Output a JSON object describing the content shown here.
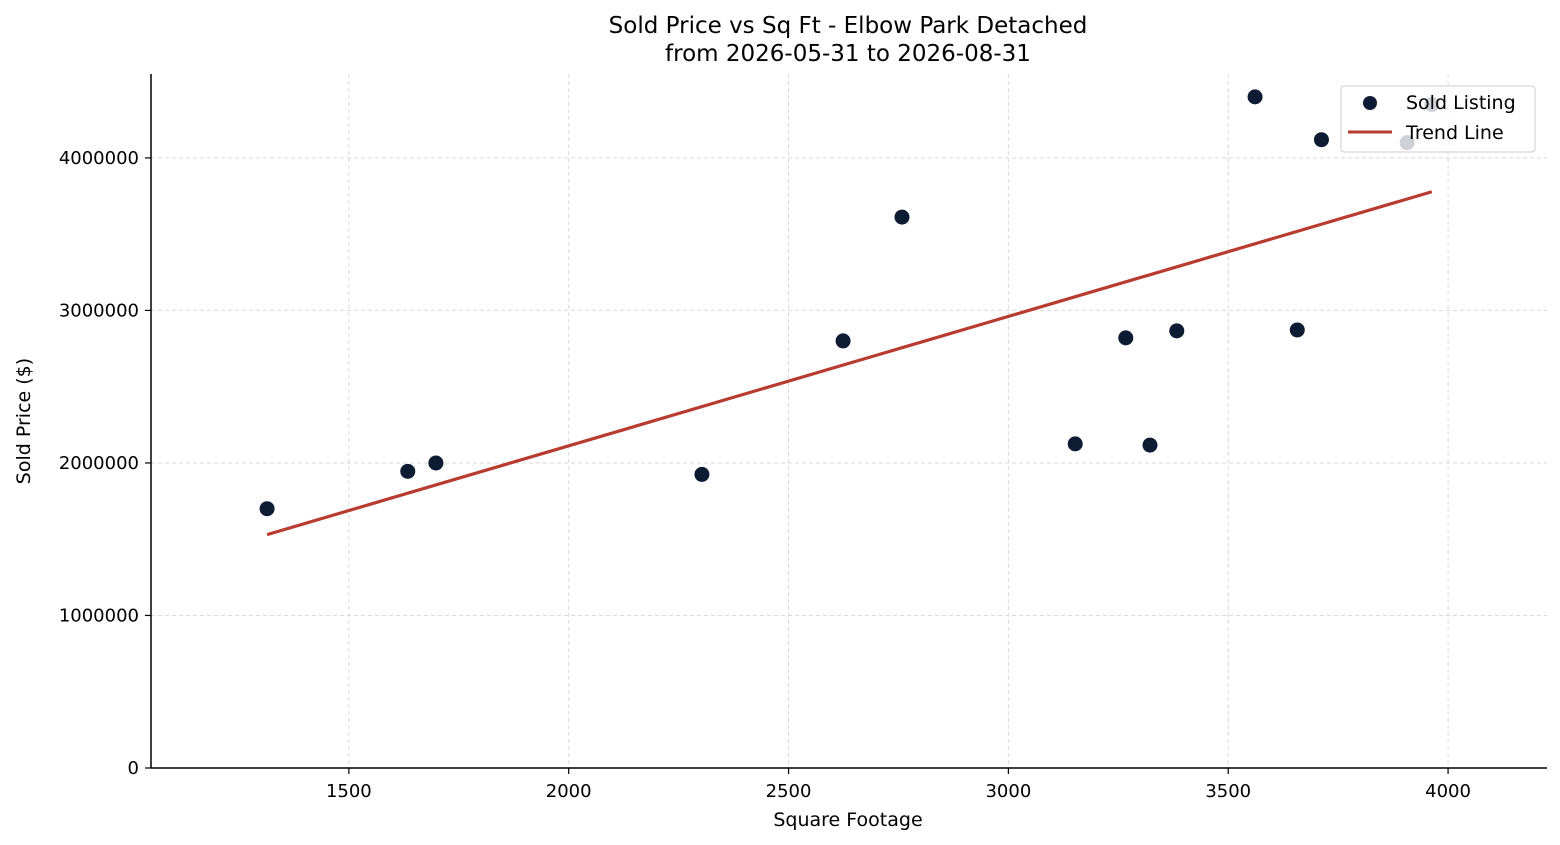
{
  "chart_data": {
    "type": "scatter",
    "title": "Sold Price vs Sq Ft - Elbow Park Detached",
    "subtitle": "from 2026-05-31 to 2026-08-31",
    "xlabel": "Square Footage",
    "ylabel": "Sold Price ($)",
    "xlim": [
      1050,
      4225
    ],
    "ylim": [
      0,
      4550000
    ],
    "xticks": [
      1500,
      2000,
      2500,
      3000,
      3500,
      4000
    ],
    "yticks": [
      0,
      1000000,
      2000000,
      3000000,
      4000000
    ],
    "xtick_labels": [
      "1500",
      "2000",
      "2500",
      "3000",
      "3500",
      "4000"
    ],
    "ytick_labels": [
      "0",
      "1000000",
      "2000000",
      "3000000",
      "4000000"
    ],
    "grid": true,
    "legend_position": "top-right",
    "series": [
      {
        "name": "Sold Listing",
        "kind": "scatter",
        "color": "#0d1b33",
        "points": [
          {
            "x": 1314,
            "y": 1700000
          },
          {
            "x": 1634,
            "y": 1945000
          },
          {
            "x": 1698,
            "y": 2000000
          },
          {
            "x": 2303,
            "y": 1925000
          },
          {
            "x": 2624,
            "y": 2800000
          },
          {
            "x": 2758,
            "y": 3612000
          },
          {
            "x": 3152,
            "y": 2125000
          },
          {
            "x": 3267,
            "y": 2820000
          },
          {
            "x": 3322,
            "y": 2117000
          },
          {
            "x": 3383,
            "y": 2866000
          },
          {
            "x": 3561,
            "y": 4400000
          },
          {
            "x": 3657,
            "y": 2872000
          },
          {
            "x": 3712,
            "y": 4119000
          },
          {
            "x": 3907,
            "y": 4100000
          },
          {
            "x": 3963,
            "y": 4350000
          }
        ]
      },
      {
        "name": "Trend Line",
        "kind": "line",
        "color": "#b83b30",
        "points": [
          {
            "x": 1314,
            "y": 1530000
          },
          {
            "x": 3963,
            "y": 3778000
          }
        ]
      }
    ]
  }
}
